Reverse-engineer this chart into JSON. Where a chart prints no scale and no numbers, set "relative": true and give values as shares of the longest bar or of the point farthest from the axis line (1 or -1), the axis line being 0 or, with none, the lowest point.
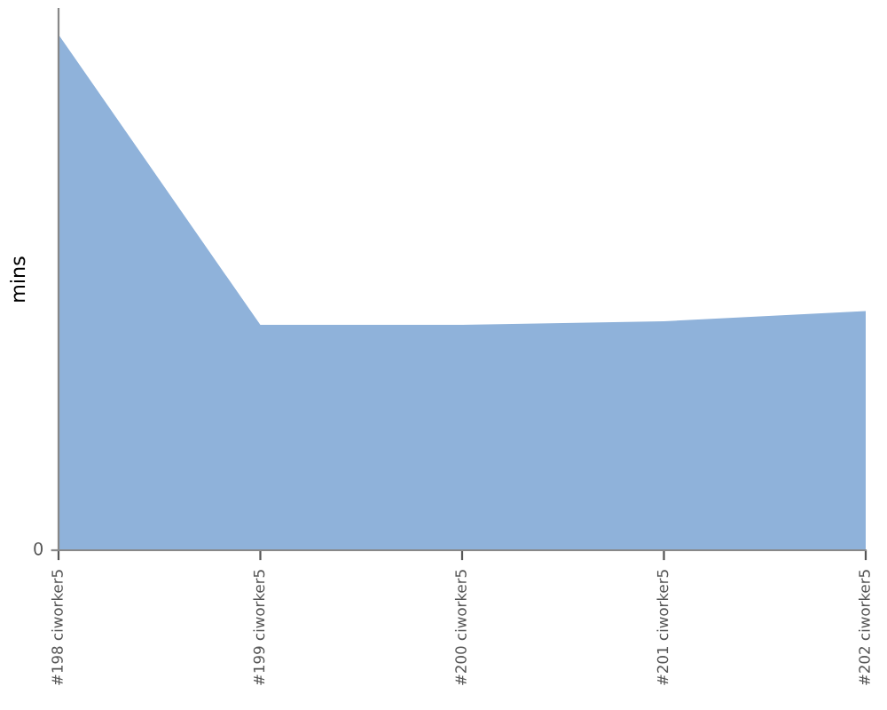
{
  "chart_data": {
    "type": "area",
    "ylabel": "mins",
    "relative": true,
    "annotations": [
      "0"
    ],
    "categories": [
      "#198 ciworker5",
      "#199 ciworker5",
      "#200 ciworker5",
      "#201 ciworker5",
      "#202 ciworker5"
    ],
    "series": [
      {
        "color": "#8fb2da",
        "values": [
          1,
          0.437,
          0.437,
          0.444,
          0.464
        ]
      }
    ]
  }
}
